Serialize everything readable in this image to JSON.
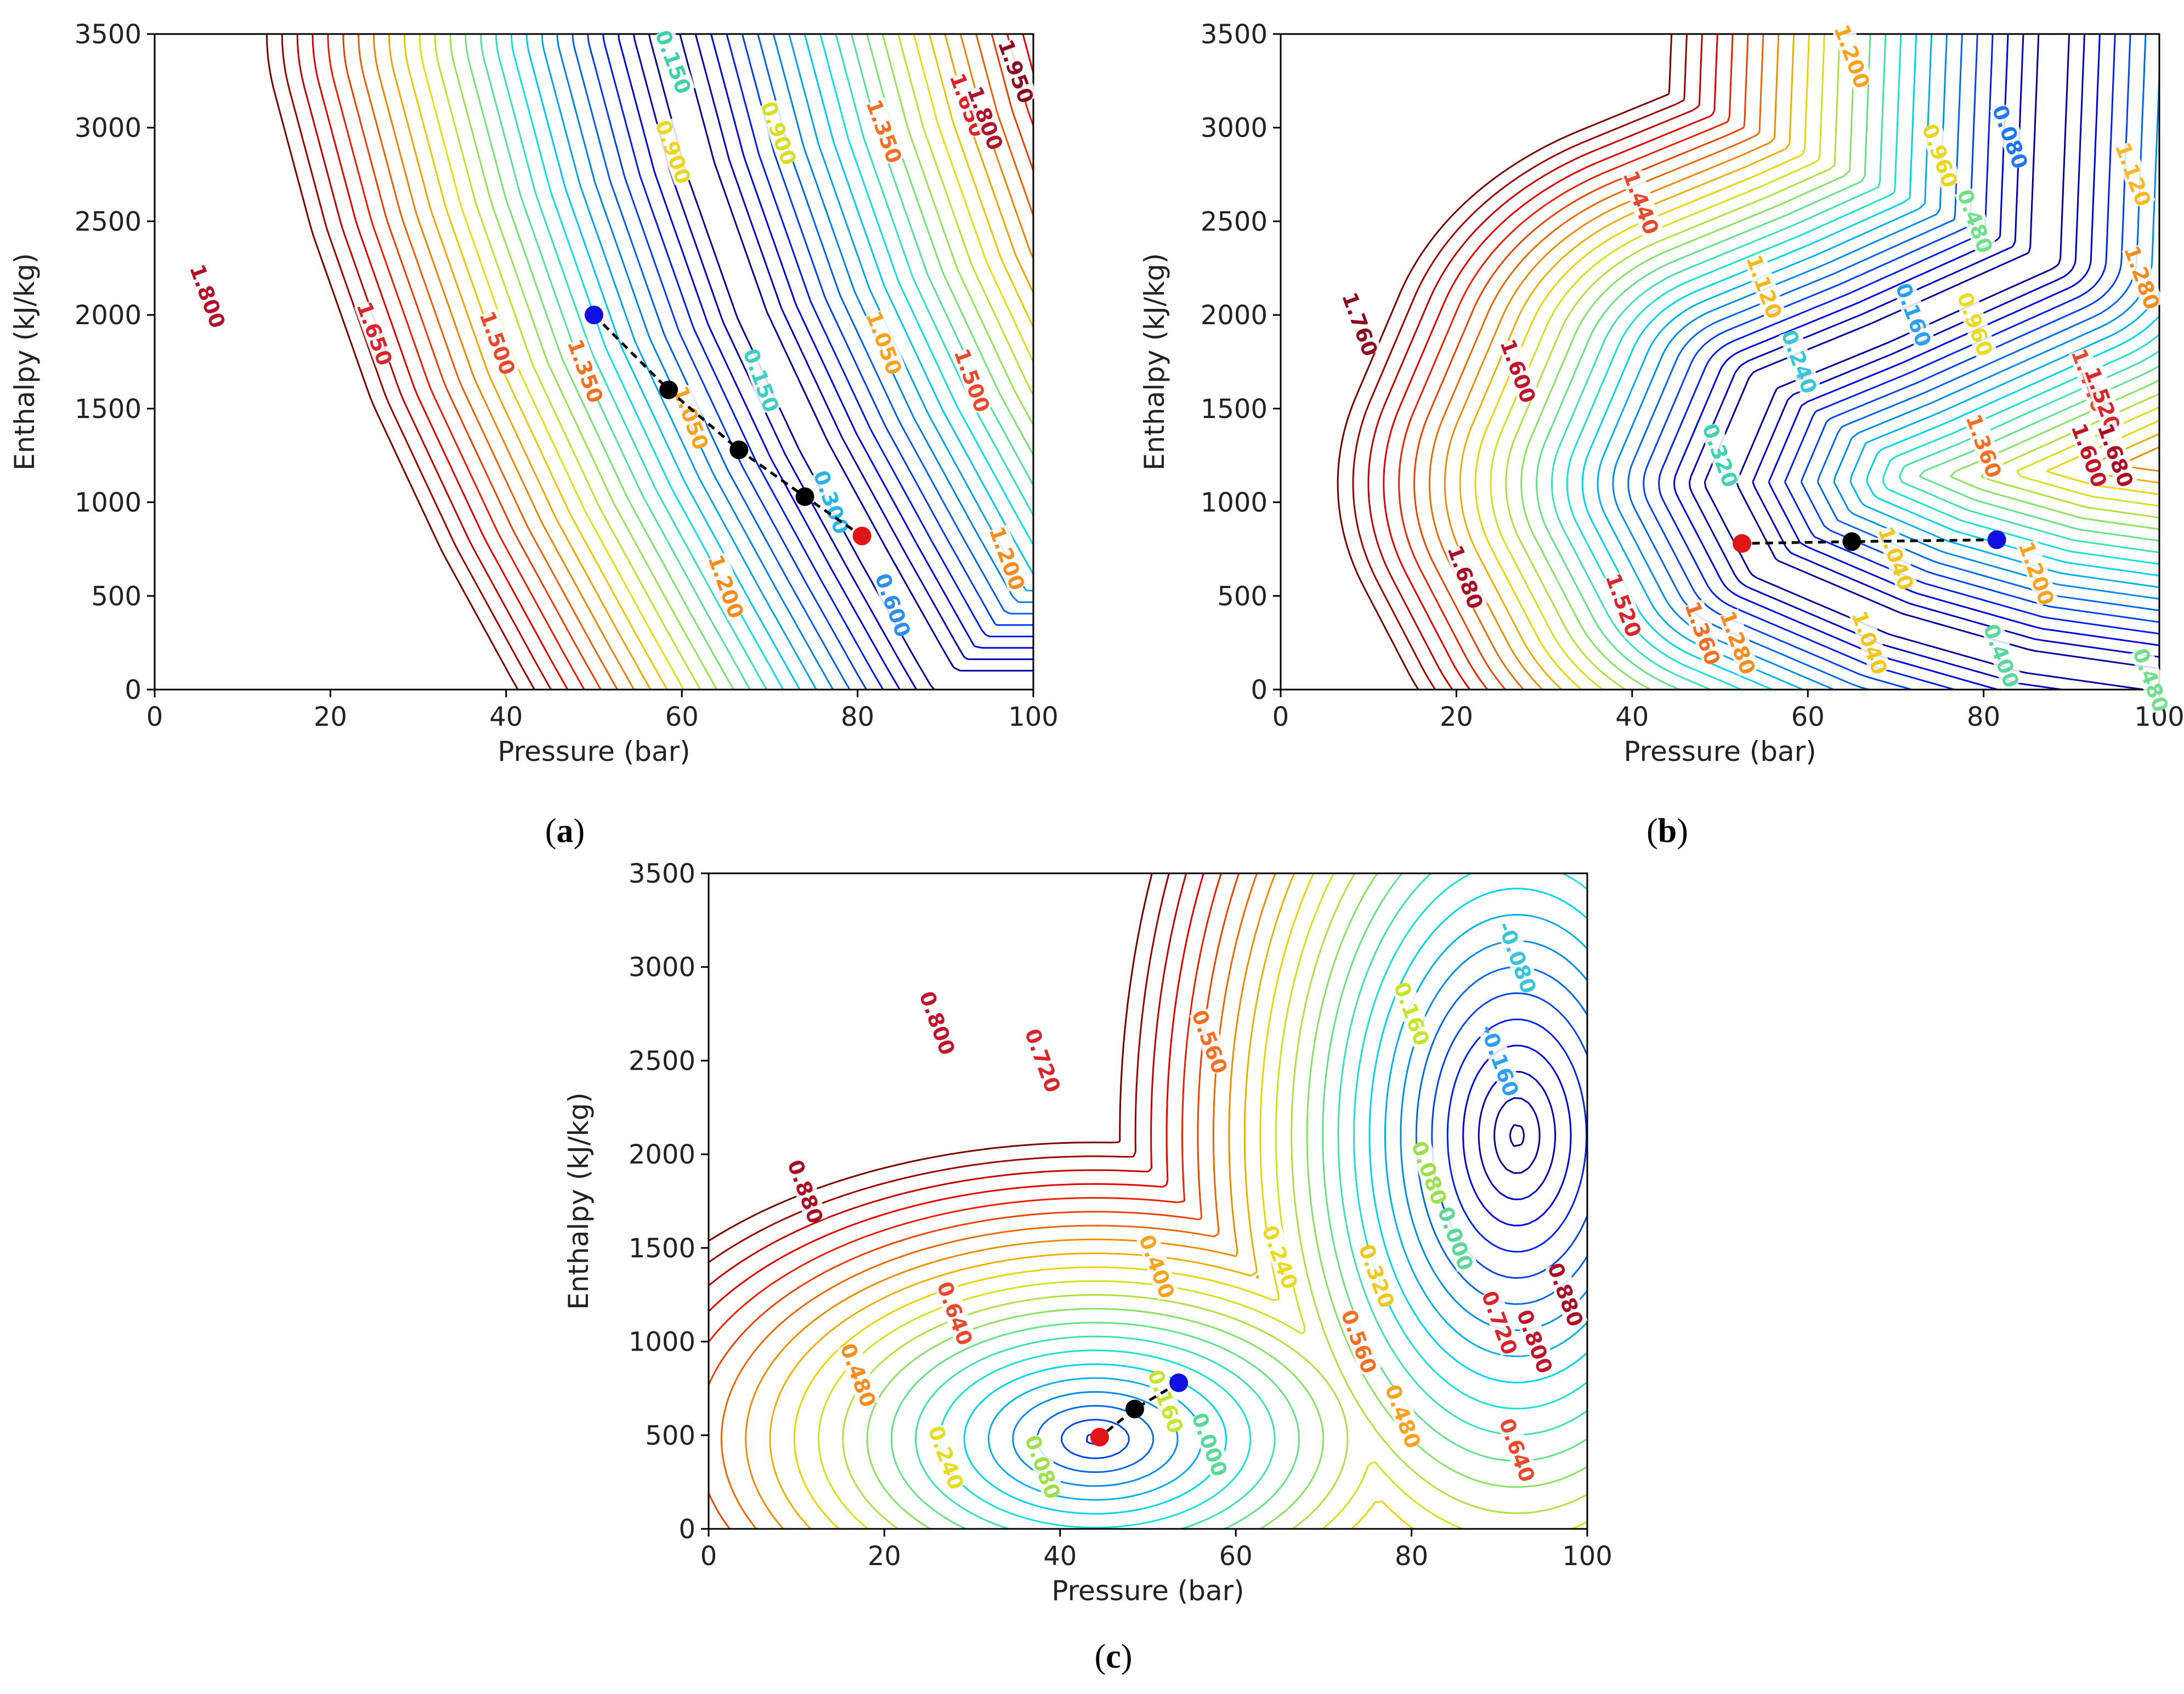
{
  "chart_data": [
    {
      "type": "contour",
      "panel_label": "a",
      "xlabel": "Pressure (bar)",
      "ylabel": "Enthalpy (kJ/kg)",
      "xlim": [
        0,
        100
      ],
      "ylim": [
        0,
        3500
      ],
      "xticks": [
        "0",
        "20",
        "40",
        "60",
        "80",
        "100"
      ],
      "yticks": [
        "0",
        "500",
        "1000",
        "1500",
        "2000",
        "2500",
        "3000",
        "3500"
      ],
      "valley": [
        [
          58,
          3500
        ],
        [
          62,
          2800
        ],
        [
          68,
          2000
        ],
        [
          75,
          1300
        ],
        [
          82,
          700
        ],
        [
          88,
          200
        ],
        [
          90,
          40
        ],
        [
          100,
          40
        ]
      ],
      "contour_labels": [
        {
          "text": "1.800",
          "x": 6,
          "y": 2100,
          "c": "#b0102a"
        },
        {
          "text": "1.650",
          "x": 25,
          "y": 1900,
          "c": "#d9242c"
        },
        {
          "text": "1.500",
          "x": 39,
          "y": 1850,
          "c": "#e8492c"
        },
        {
          "text": "1.350",
          "x": 49,
          "y": 1700,
          "c": "#f46f23"
        },
        {
          "text": "1.050",
          "x": 61,
          "y": 1450,
          "c": "#f9a21d"
        },
        {
          "text": "1.200",
          "x": 65,
          "y": 550,
          "c": "#f58c1d"
        },
        {
          "text": "0.900",
          "x": 59,
          "y": 2870,
          "c": "#ead61d"
        },
        {
          "text": "0.900",
          "x": 71,
          "y": 2970,
          "c": "#d8df22"
        },
        {
          "text": "0.150",
          "x": 59,
          "y": 3350,
          "c": "#3cd1a8"
        },
        {
          "text": "0.150",
          "x": 69,
          "y": 1650,
          "c": "#3ccfc0"
        },
        {
          "text": "0.300",
          "x": 77,
          "y": 1000,
          "c": "#2ab4e6"
        },
        {
          "text": "0.600",
          "x": 84,
          "y": 450,
          "c": "#2a8ff0"
        },
        {
          "text": "1.350",
          "x": 83,
          "y": 2980,
          "c": "#f46f23"
        },
        {
          "text": "1.050",
          "x": 83,
          "y": 1850,
          "c": "#f9a21d"
        },
        {
          "text": "1.500",
          "x": 93,
          "y": 1650,
          "c": "#e8492c"
        },
        {
          "text": "1.200",
          "x": 97,
          "y": 700,
          "c": "#f58c1d"
        },
        {
          "text": "1.650",
          "x": 92.5,
          "y": 3120,
          "c": "#d9242c"
        },
        {
          "text": "1.800",
          "x": 94.5,
          "y": 3050,
          "c": "#b0102a"
        },
        {
          "text": "1.950",
          "x": 98,
          "y": 3300,
          "c": "#8a0a20"
        }
      ],
      "path_points": [
        {
          "x": 50,
          "y": 2000,
          "kind": "start"
        },
        {
          "x": 58.5,
          "y": 1600,
          "kind": "step"
        },
        {
          "x": 66.5,
          "y": 1280,
          "kind": "step"
        },
        {
          "x": 74,
          "y": 1030,
          "kind": "step"
        },
        {
          "x": 80.5,
          "y": 820,
          "kind": "end"
        }
      ]
    },
    {
      "type": "contour",
      "panel_label": "b",
      "xlabel": "Pressure (bar)",
      "ylabel": "Enthalpy (kJ/kg)",
      "xlim": [
        0,
        100
      ],
      "ylim": [
        0,
        3500
      ],
      "xticks": [
        "0",
        "20",
        "40",
        "60",
        "80",
        "100"
      ],
      "yticks": [
        "0",
        "500",
        "1000",
        "1500",
        "2000",
        "2500",
        "3000",
        "3500"
      ],
      "valley": [
        [
          88,
          3500
        ],
        [
          87,
          2300
        ],
        [
          68,
          1900
        ],
        [
          55,
          1650
        ],
        [
          50,
          1100
        ],
        [
          55,
          650
        ],
        [
          70,
          350
        ],
        [
          85,
          150
        ],
        [
          100,
          50
        ]
      ],
      "contour_labels": [
        {
          "text": "1.760",
          "x": 9,
          "y": 1950,
          "c": "#8a0a20"
        },
        {
          "text": "1.680",
          "x": 21,
          "y": 600,
          "c": "#a80d25"
        },
        {
          "text": "1.600",
          "x": 27,
          "y": 1700,
          "c": "#c0142b"
        },
        {
          "text": "1.440",
          "x": 41,
          "y": 2600,
          "c": "#e8492c"
        },
        {
          "text": "1.520",
          "x": 39,
          "y": 450,
          "c": "#d9242c"
        },
        {
          "text": "1.360",
          "x": 48,
          "y": 300,
          "c": "#f46f23"
        },
        {
          "text": "1.280",
          "x": 52,
          "y": 250,
          "c": "#f58c1d"
        },
        {
          "text": "1.200",
          "x": 65,
          "y": 3380,
          "c": "#f9a21d"
        },
        {
          "text": "1.120",
          "x": 55,
          "y": 2150,
          "c": "#f9b81d"
        },
        {
          "text": "0.960",
          "x": 75,
          "y": 2850,
          "c": "#ead61d"
        },
        {
          "text": "0.960",
          "x": 79,
          "y": 1950,
          "c": "#e8dc20"
        },
        {
          "text": "0.480",
          "x": 79,
          "y": 2500,
          "c": "#6ee08a"
        },
        {
          "text": "0.240",
          "x": 59,
          "y": 1750,
          "c": "#38c6d6"
        },
        {
          "text": "0.160",
          "x": 72,
          "y": 2000,
          "c": "#2aa0ee"
        },
        {
          "text": "0.080",
          "x": 83,
          "y": 2950,
          "c": "#1e78f0"
        },
        {
          "text": "0.320",
          "x": 50,
          "y": 1250,
          "c": "#3dd3b0"
        },
        {
          "text": "1.040",
          "x": 70,
          "y": 700,
          "c": "#f0c81d"
        },
        {
          "text": "1.040",
          "x": 67,
          "y": 250,
          "c": "#f0c81d"
        },
        {
          "text": "1.200",
          "x": 86,
          "y": 620,
          "c": "#f9a21d"
        },
        {
          "text": "1.360",
          "x": 80,
          "y": 1300,
          "c": "#f46f23"
        },
        {
          "text": "1.440",
          "x": 92,
          "y": 1650,
          "c": "#e8492c"
        },
        {
          "text": "1.520",
          "x": 93.5,
          "y": 1550,
          "c": "#d9242c"
        },
        {
          "text": "1.600",
          "x": 92,
          "y": 1250,
          "c": "#c0142b"
        },
        {
          "text": "1.680",
          "x": 95,
          "y": 1250,
          "c": "#a80d25"
        },
        {
          "text": "1.120",
          "x": 97,
          "y": 2750,
          "c": "#f9b81d"
        },
        {
          "text": "1.280",
          "x": 98,
          "y": 2200,
          "c": "#f58c1d"
        },
        {
          "text": "0.400",
          "x": 82,
          "y": 180,
          "c": "#58d99c"
        },
        {
          "text": "0.480",
          "x": 99,
          "y": 50,
          "c": "#6ee08a"
        }
      ],
      "path_points": [
        {
          "x": 81.5,
          "y": 800,
          "kind": "start"
        },
        {
          "x": 65,
          "y": 790,
          "kind": "step"
        },
        {
          "x": 52.5,
          "y": 780,
          "kind": "end"
        }
      ]
    },
    {
      "type": "contour",
      "panel_label": "c",
      "xlabel": "Pressure (bar)",
      "ylabel": "Enthalpy (kJ/kg)",
      "xlim": [
        0,
        100
      ],
      "ylim": [
        0,
        3500
      ],
      "xticks": [
        "0",
        "20",
        "40",
        "60",
        "80",
        "100"
      ],
      "yticks": [
        "0",
        "500",
        "1000",
        "1500",
        "2000",
        "2500",
        "3000",
        "3500"
      ],
      "minimum": [
        44,
        480
      ],
      "contour_labels": [
        {
          "text": "0.880",
          "x": 11,
          "y": 1800,
          "c": "#a80d25"
        },
        {
          "text": "0.800",
          "x": 26,
          "y": 2700,
          "c": "#c0142b"
        },
        {
          "text": "0.720",
          "x": 38,
          "y": 2500,
          "c": "#d9242c"
        },
        {
          "text": "0.560",
          "x": 57,
          "y": 2600,
          "c": "#f46f23"
        },
        {
          "text": "0.640",
          "x": 28,
          "y": 1150,
          "c": "#e8492c"
        },
        {
          "text": "0.480",
          "x": 17,
          "y": 820,
          "c": "#f58c1d"
        },
        {
          "text": "0.400",
          "x": 51,
          "y": 1400,
          "c": "#f9a21d"
        },
        {
          "text": "0.240",
          "x": 65,
          "y": 1450,
          "c": "#e8dc20"
        },
        {
          "text": "0.320",
          "x": 76,
          "y": 1350,
          "c": "#f0c81d"
        },
        {
          "text": "0.240",
          "x": 27,
          "y": 380,
          "c": "#e8dc20"
        },
        {
          "text": "0.160",
          "x": 52,
          "y": 680,
          "c": "#c6e428"
        },
        {
          "text": "0.080",
          "x": 38,
          "y": 330,
          "c": "#9ee04a"
        },
        {
          "text": "0.000",
          "x": 57,
          "y": 450,
          "c": "#5ad89a"
        },
        {
          "text": "0.160",
          "x": 80,
          "y": 2750,
          "c": "#c6e428"
        },
        {
          "text": "0.080",
          "x": 82,
          "y": 1900,
          "c": "#9ee04a"
        },
        {
          "text": "0.000",
          "x": 85,
          "y": 1550,
          "c": "#5ad89a"
        },
        {
          "text": "-0.080",
          "x": 92,
          "y": 3050,
          "c": "#38c6d6"
        },
        {
          "text": "-0.160",
          "x": 90,
          "y": 2500,
          "c": "#2aa0ee"
        },
        {
          "text": "0.560",
          "x": 74,
          "y": 1000,
          "c": "#f46f23"
        },
        {
          "text": "0.480",
          "x": 79,
          "y": 600,
          "c": "#f9a21d"
        },
        {
          "text": "0.640",
          "x": 92,
          "y": 420,
          "c": "#e8492c"
        },
        {
          "text": "0.720",
          "x": 90,
          "y": 1100,
          "c": "#d9242c"
        },
        {
          "text": "0.800",
          "x": 94,
          "y": 1000,
          "c": "#c0142b"
        },
        {
          "text": "0.880",
          "x": 97.5,
          "y": 1250,
          "c": "#a80d25"
        }
      ],
      "path_points": [
        {
          "x": 53.5,
          "y": 780,
          "kind": "start"
        },
        {
          "x": 48.5,
          "y": 640,
          "kind": "step"
        },
        {
          "x": 44.5,
          "y": 490,
          "kind": "end"
        }
      ]
    }
  ],
  "captions": [
    "(a)",
    "(b)",
    "(c)"
  ]
}
